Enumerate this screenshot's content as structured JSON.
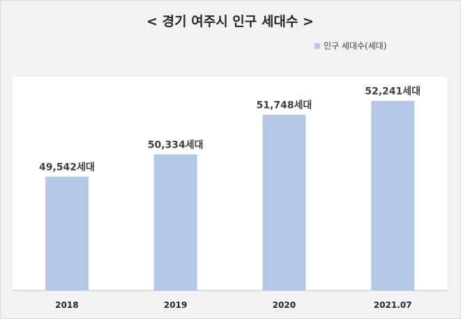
{
  "chart_data": {
    "type": "bar",
    "title": "< 경기 여주시 인구 세대수 >",
    "categories": [
      "2018",
      "2019",
      "2020",
      "2021.07"
    ],
    "series": [
      {
        "name": "인구 세대수(세대)",
        "values": [
          49542,
          50334,
          51748,
          52241
        ],
        "value_labels": [
          "49,542세대",
          "50,334세대",
          "51,748세대",
          "52,241세대"
        ]
      }
    ],
    "xlabel": "",
    "ylabel": "",
    "ylim": [
      45500,
      53100
    ],
    "grid": false,
    "legend_position": "top-right",
    "colors": {
      "background": "#f2f2f2",
      "plot_background": "#ffffff",
      "bar": "#b4c7e7",
      "text": "#404040",
      "axis": "#bfbfbf"
    }
  }
}
